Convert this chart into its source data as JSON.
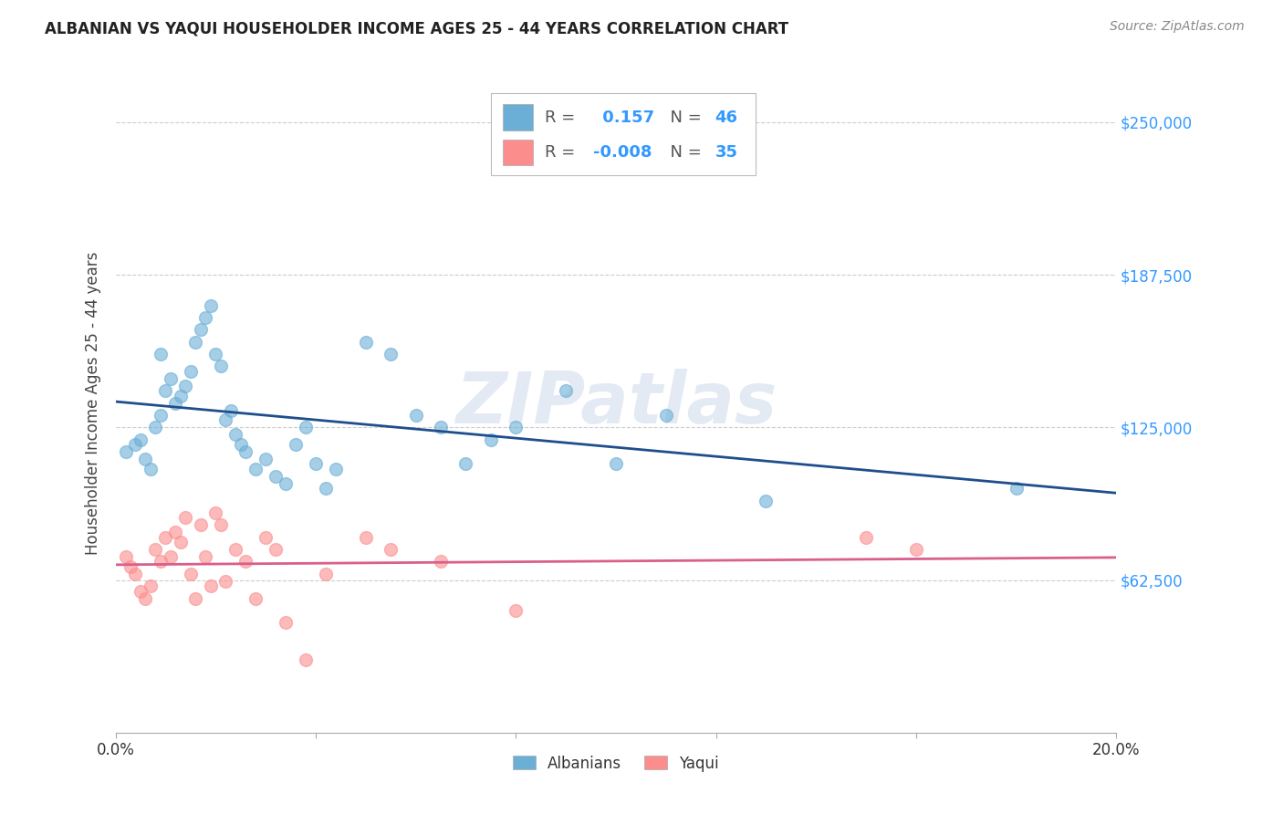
{
  "title": "ALBANIAN VS YAQUI HOUSEHOLDER INCOME AGES 25 - 44 YEARS CORRELATION CHART",
  "source": "Source: ZipAtlas.com",
  "ylabel": "Householder Income Ages 25 - 44 years",
  "xlim": [
    0.0,
    0.2
  ],
  "ylim": [
    0,
    270000
  ],
  "yticks": [
    62500,
    125000,
    187500,
    250000
  ],
  "ytick_labels": [
    "$62,500",
    "$125,000",
    "$187,500",
    "$250,000"
  ],
  "albanians_x": [
    0.002,
    0.004,
    0.005,
    0.006,
    0.007,
    0.008,
    0.009,
    0.009,
    0.01,
    0.011,
    0.012,
    0.013,
    0.014,
    0.015,
    0.016,
    0.017,
    0.018,
    0.019,
    0.02,
    0.021,
    0.022,
    0.023,
    0.024,
    0.025,
    0.026,
    0.028,
    0.03,
    0.032,
    0.034,
    0.036,
    0.038,
    0.04,
    0.042,
    0.044,
    0.05,
    0.055,
    0.06,
    0.065,
    0.07,
    0.075,
    0.08,
    0.09,
    0.1,
    0.11,
    0.13,
    0.18
  ],
  "albanians_y": [
    115000,
    118000,
    120000,
    112000,
    108000,
    125000,
    130000,
    155000,
    140000,
    145000,
    135000,
    138000,
    142000,
    148000,
    160000,
    165000,
    170000,
    175000,
    155000,
    150000,
    128000,
    132000,
    122000,
    118000,
    115000,
    108000,
    112000,
    105000,
    102000,
    118000,
    125000,
    110000,
    100000,
    108000,
    160000,
    155000,
    130000,
    125000,
    110000,
    120000,
    125000,
    140000,
    110000,
    130000,
    95000,
    100000
  ],
  "yaqui_x": [
    0.002,
    0.003,
    0.004,
    0.005,
    0.006,
    0.007,
    0.008,
    0.009,
    0.01,
    0.011,
    0.012,
    0.013,
    0.014,
    0.015,
    0.016,
    0.017,
    0.018,
    0.019,
    0.02,
    0.021,
    0.022,
    0.024,
    0.026,
    0.028,
    0.03,
    0.032,
    0.034,
    0.038,
    0.042,
    0.05,
    0.055,
    0.065,
    0.08,
    0.15,
    0.16
  ],
  "yaqui_y": [
    72000,
    68000,
    65000,
    58000,
    55000,
    60000,
    75000,
    70000,
    80000,
    72000,
    82000,
    78000,
    88000,
    65000,
    55000,
    85000,
    72000,
    60000,
    90000,
    85000,
    62000,
    75000,
    70000,
    55000,
    80000,
    75000,
    45000,
    30000,
    65000,
    80000,
    75000,
    70000,
    50000,
    80000,
    75000
  ],
  "albanian_R": 0.157,
  "albanian_N": 46,
  "yaqui_R": -0.008,
  "yaqui_N": 35,
  "albanian_color": "#6baed6",
  "yaqui_color": "#fc8d8d",
  "albanian_line_color": "#1f4e8c",
  "yaqui_line_color": "#d95f8c",
  "watermark": "ZIPatlas",
  "background_color": "#ffffff",
  "grid_color": "#cccccc"
}
